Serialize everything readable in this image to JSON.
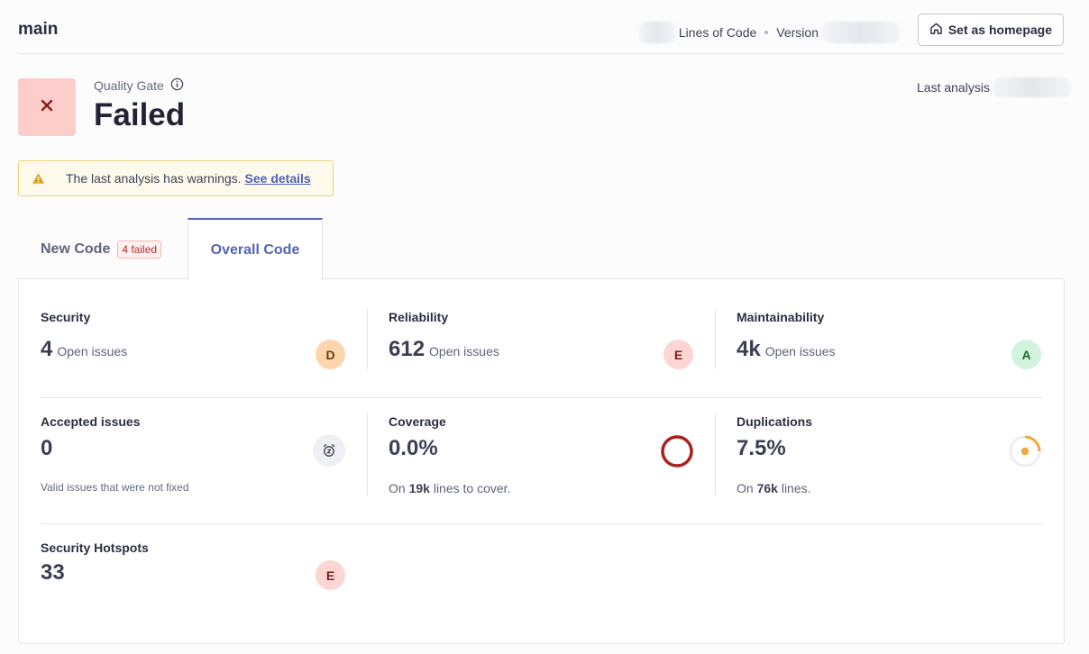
{
  "header": {
    "branch": "main",
    "lines_of_code_label": "Lines of Code",
    "version_label": "Version",
    "homepage_button": "Set as homepage"
  },
  "quality_gate": {
    "label": "Quality Gate",
    "status": "Failed",
    "last_analysis_label": "Last analysis"
  },
  "warning": {
    "text": "The last analysis has warnings.",
    "link": "See details"
  },
  "tabs": {
    "new_code": "New Code",
    "new_code_badge": "4 failed",
    "overall_code": "Overall Code"
  },
  "metrics": {
    "security": {
      "title": "Security",
      "value": "4",
      "unit": "Open issues",
      "grade": "D"
    },
    "reliability": {
      "title": "Reliability",
      "value": "612",
      "unit": "Open issues",
      "grade": "E"
    },
    "maintainability": {
      "title": "Maintainability",
      "value": "4k",
      "unit": "Open issues",
      "grade": "A"
    },
    "accepted": {
      "title": "Accepted issues",
      "value": "0",
      "note": "Valid issues that were not fixed"
    },
    "coverage": {
      "title": "Coverage",
      "value": "0.0%",
      "note_prefix": "On",
      "note_value": "19k",
      "note_suffix": "lines to cover."
    },
    "duplications": {
      "title": "Duplications",
      "value": "7.5%",
      "note_prefix": "On",
      "note_value": "76k",
      "note_suffix": "lines."
    },
    "hotspots": {
      "title": "Security Hotspots",
      "value": "33",
      "grade": "E"
    }
  },
  "colors": {
    "failed_bg": "#fdcdcb",
    "failed_x": "#8c1c17",
    "accent": "#5764b9",
    "warning": "#d9a21b",
    "coverage_ring": "#a8211c",
    "duplication_arc": "#f0a93b"
  },
  "icons": {
    "home": "home-icon",
    "info": "info-icon",
    "fail": "close-icon",
    "warning": "warning-icon",
    "accepted": "alarm-clock-icon",
    "coverage": "coverage-ring-icon",
    "duplications": "duplication-donut-icon"
  }
}
